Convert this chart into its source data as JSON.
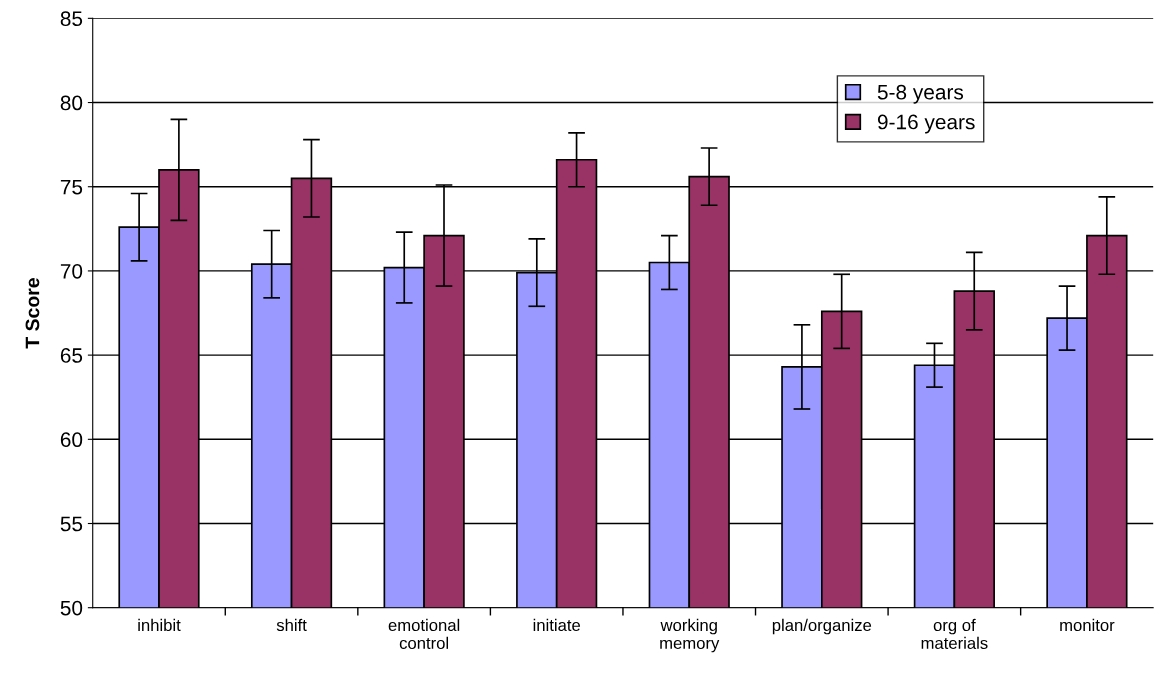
{
  "chart_data": {
    "type": "bar",
    "ylabel": "T Score",
    "categories": [
      "inhibit",
      "shift",
      "emotional\ncontrol",
      "initiate",
      "working\nmemory",
      "plan/organize",
      "org of\nmaterials",
      "monitor"
    ],
    "series": [
      {
        "name": "5-8 years",
        "color": "#9999ff",
        "values": [
          72.6,
          70.4,
          70.2,
          69.9,
          70.5,
          64.3,
          64.4,
          67.2
        ],
        "errors": [
          2.0,
          2.0,
          2.1,
          2.0,
          1.6,
          2.5,
          1.3,
          1.9
        ]
      },
      {
        "name": "9-16 years",
        "color": "#993366",
        "values": [
          76.0,
          75.5,
          72.1,
          76.6,
          75.6,
          67.6,
          68.8,
          72.1
        ],
        "errors": [
          3.0,
          2.3,
          3.0,
          1.6,
          1.7,
          2.2,
          2.3,
          2.3
        ]
      }
    ],
    "ylim": [
      50,
      85
    ],
    "yticks": [
      50,
      55,
      60,
      65,
      70,
      75,
      80,
      85
    ],
    "grid": "y",
    "legend": "top right"
  }
}
